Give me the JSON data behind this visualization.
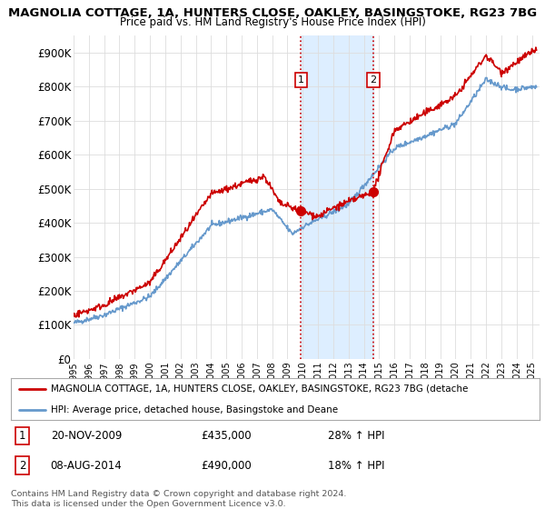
{
  "title": "MAGNOLIA COTTAGE, 1A, HUNTERS CLOSE, OAKLEY, BASINGSTOKE, RG23 7BG",
  "subtitle": "Price paid vs. HM Land Registry's House Price Index (HPI)",
  "ylabel_ticks": [
    "£0",
    "£100K",
    "£200K",
    "£300K",
    "£400K",
    "£500K",
    "£600K",
    "£700K",
    "£800K",
    "£900K"
  ],
  "ytick_values": [
    0,
    100000,
    200000,
    300000,
    400000,
    500000,
    600000,
    700000,
    800000,
    900000
  ],
  "ylim": [
    0,
    950000
  ],
  "xlim_start": 1995.0,
  "xlim_end": 2025.5,
  "red_line_color": "#cc0000",
  "blue_line_color": "#6699cc",
  "purchase1_x": 2009.89,
  "purchase1_y": 435000,
  "purchase2_x": 2014.6,
  "purchase2_y": 490000,
  "vline1_x": 2009.89,
  "vline2_x": 2014.6,
  "vline_color": "#cc0000",
  "vline_style": ":",
  "highlight_color": "#ddeeff",
  "legend_label_red": "MAGNOLIA COTTAGE, 1A, HUNTERS CLOSE, OAKLEY, BASINGSTOKE, RG23 7BG (detache",
  "legend_label_blue": "HPI: Average price, detached house, Basingstoke and Deane",
  "annotation1_label": "1",
  "annotation1_date": "20-NOV-2009",
  "annotation1_price": "£435,000",
  "annotation1_hpi": "28% ↑ HPI",
  "annotation2_label": "2",
  "annotation2_date": "08-AUG-2014",
  "annotation2_price": "£490,000",
  "annotation2_hpi": "18% ↑ HPI",
  "footer": "Contains HM Land Registry data © Crown copyright and database right 2024.\nThis data is licensed under the Open Government Licence v3.0.",
  "background_color": "#ffffff",
  "grid_color": "#dddddd"
}
